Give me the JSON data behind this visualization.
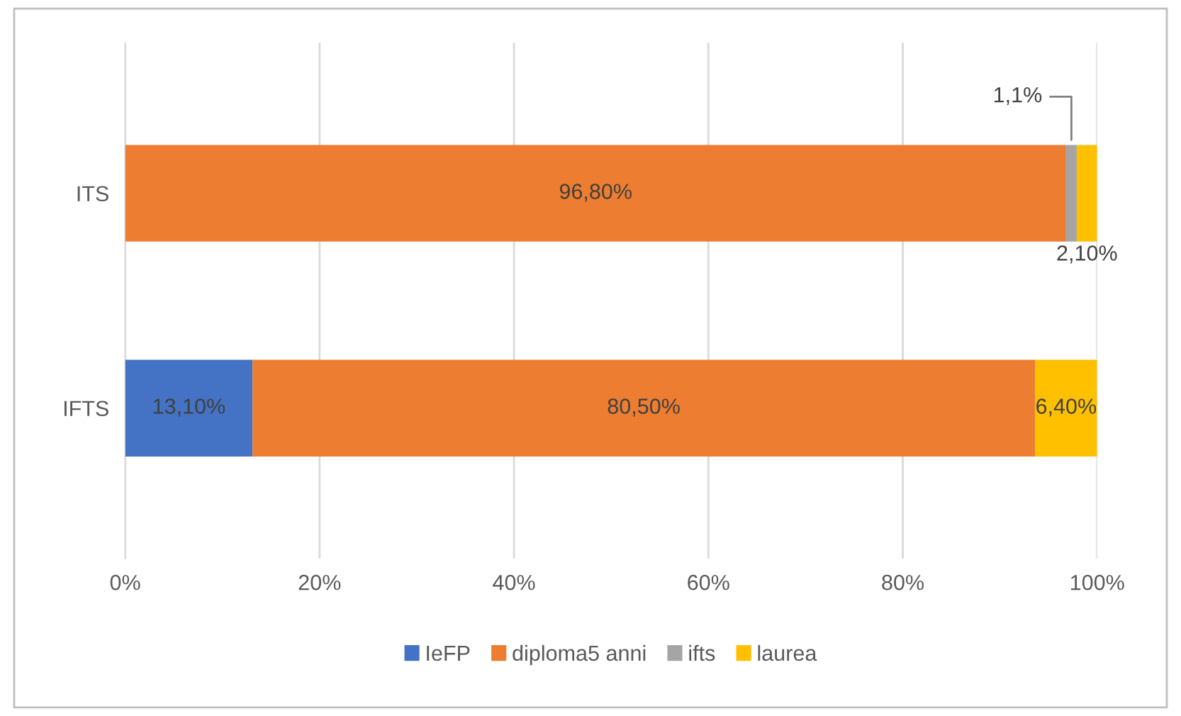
{
  "chart_data": {
    "type": "bar",
    "orientation": "horizontal",
    "stacked": true,
    "categories": [
      "ITS",
      "IFTS"
    ],
    "series": [
      {
        "name": "IeFP",
        "color": "#4472c4",
        "values": [
          null,
          13.1
        ],
        "value_labels": [
          null,
          "13,10%"
        ]
      },
      {
        "name": "diploma5 anni",
        "color": "#ed7d31",
        "values": [
          96.8,
          80.5
        ],
        "value_labels": [
          "96,80%",
          "80,50%"
        ]
      },
      {
        "name": "ifts",
        "color": "#a5a5a5",
        "values": [
          1.1,
          null
        ],
        "value_labels": [
          "1,1%",
          null
        ]
      },
      {
        "name": "laurea",
        "color": "#ffc000",
        "values": [
          2.1,
          6.4
        ],
        "value_labels": [
          "2,10%",
          "6,40%"
        ]
      }
    ],
    "xlim": [
      0,
      100
    ],
    "xticks": [
      {
        "value": 0,
        "label": "0%"
      },
      {
        "value": 20,
        "label": "20%"
      },
      {
        "value": 40,
        "label": "40%"
      },
      {
        "value": 60,
        "label": "60%"
      },
      {
        "value": 80,
        "label": "80%"
      },
      {
        "value": 100,
        "label": "100%"
      }
    ],
    "grid": "x",
    "legend": "bottom"
  }
}
